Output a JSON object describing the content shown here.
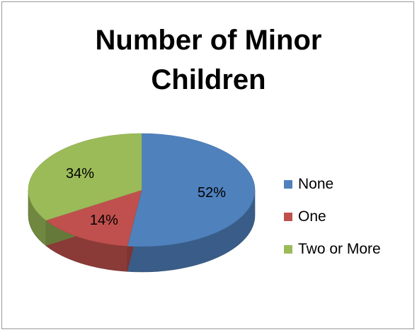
{
  "chart_data": {
    "type": "pie",
    "title": "Number of Minor Children",
    "title_lines": [
      "Number of Minor",
      "Children"
    ],
    "three_d": true,
    "legend_position": "right",
    "slices": [
      {
        "name": "None",
        "value": 52,
        "label": "52%",
        "color": "#4f81bd"
      },
      {
        "name": "One",
        "value": 14,
        "label": "14%",
        "color": "#c0504d"
      },
      {
        "name": "Two or More",
        "value": 34,
        "label": "34%",
        "color": "#9bbb59"
      }
    ]
  }
}
